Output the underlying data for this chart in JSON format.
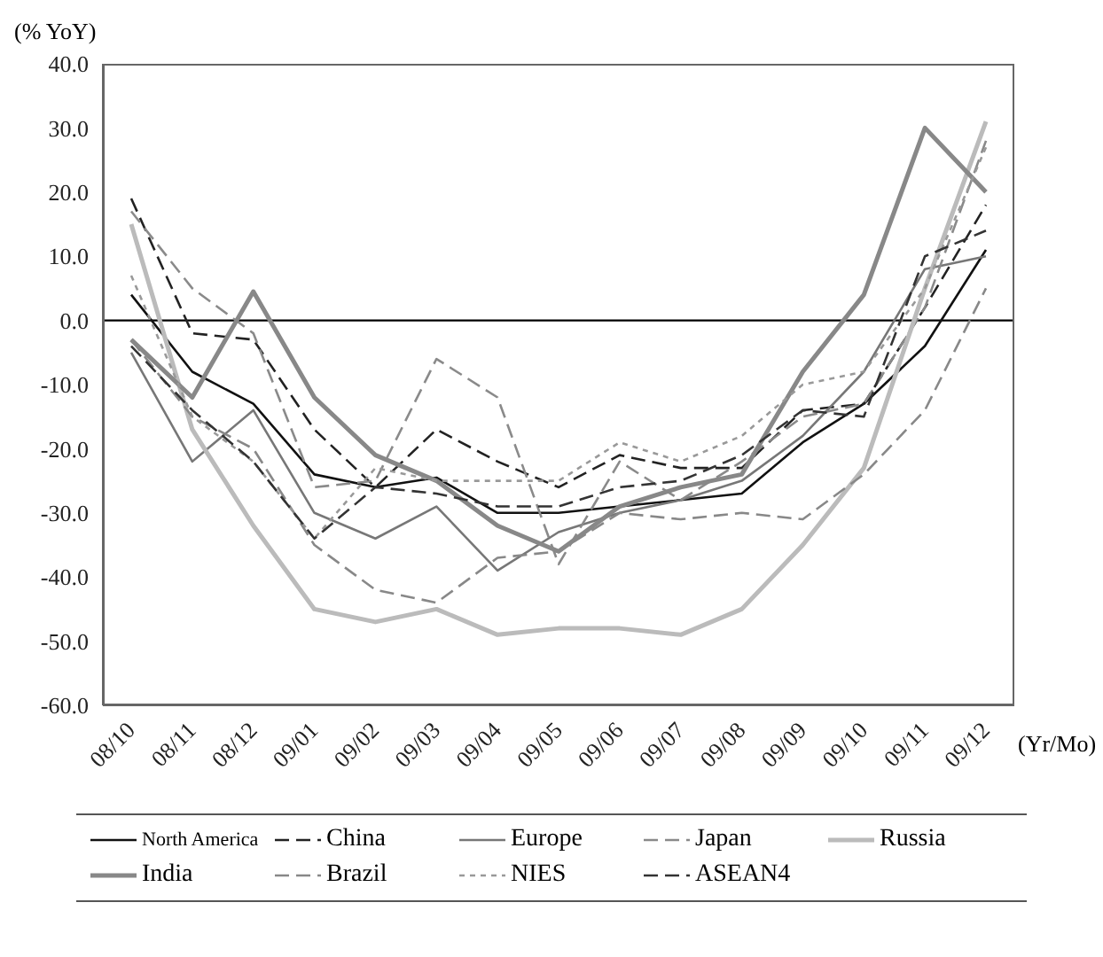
{
  "chart_data": {
    "type": "line",
    "ylabel": "(% YoY)",
    "xlabel": "(Yr/Mo)",
    "categories": [
      "08/10",
      "08/11",
      "08/12",
      "09/01",
      "09/02",
      "09/03",
      "09/04",
      "09/05",
      "09/06",
      "09/07",
      "09/08",
      "09/09",
      "09/10",
      "09/11",
      "09/12"
    ],
    "series": [
      {
        "name": "North America",
        "color": "#111111",
        "line_style": "solid",
        "values": [
          4,
          -8,
          -13,
          -24,
          -26,
          -24.5,
          -30,
          -30,
          -29,
          -28,
          -27,
          -19,
          -13,
          -4,
          11
        ]
      },
      {
        "name": "China",
        "color": "#222222",
        "line_style": "dashed",
        "values": [
          19,
          -2,
          -3,
          -17,
          -26,
          -17,
          -22,
          -26,
          -21,
          -23,
          -23,
          -14,
          -13,
          2,
          18
        ]
      },
      {
        "name": "Europe",
        "color": "#777777",
        "line_style": "solid",
        "values": [
          -5,
          -22,
          -14,
          -30,
          -34,
          -29,
          -39,
          -33,
          -30,
          -28,
          -25,
          -18,
          -8,
          8,
          10
        ]
      },
      {
        "name": "Japan",
        "color": "#8a8a8a",
        "line_style": "dashed",
        "values": [
          17,
          5,
          -2,
          -26,
          -25,
          -6,
          -12,
          -38,
          -22,
          -28,
          -22,
          -15,
          -13,
          2,
          28
        ]
      },
      {
        "name": "Russia",
        "color": "#bbbbbb",
        "line_style": "solid",
        "values": [
          15,
          -17,
          -32,
          -45,
          -47,
          -45,
          -49,
          -48,
          -48,
          -49,
          -45,
          -35,
          -23,
          5,
          31
        ]
      },
      {
        "name": "India",
        "color": "#888888",
        "line_style": "solid",
        "values": [
          -3,
          -12,
          4.5,
          -12,
          -21,
          -25,
          -32,
          -36,
          -29,
          -26,
          -24,
          -8,
          4,
          30,
          20
        ]
      },
      {
        "name": "Brazil",
        "color": "#888888",
        "line_style": "dashed",
        "values": [
          -3,
          -15,
          -20,
          -35,
          -42,
          -44,
          -37,
          -36,
          -30,
          -31,
          -30,
          -31,
          -24,
          -14,
          5
        ]
      },
      {
        "name": "NIES",
        "color": "#999999",
        "line_style": "dotted",
        "values": [
          7,
          -15,
          -22,
          -34,
          -23,
          -25,
          -25,
          -25,
          -19,
          -22,
          -18,
          -10,
          -8,
          5,
          27
        ]
      },
      {
        "name": "ASEAN4",
        "color": "#333333",
        "line_style": "dashed",
        "values": [
          -4,
          -14,
          -22,
          -34,
          -26,
          -27,
          -29,
          -29,
          -26,
          -25,
          -21,
          -14,
          -15,
          10,
          14
        ]
      }
    ],
    "ylim": [
      -60,
      40
    ],
    "yticks": [
      {
        "value": -60,
        "label": "-60.0"
      },
      {
        "value": -50,
        "label": "-50.0"
      },
      {
        "value": -40,
        "label": "-40.0"
      },
      {
        "value": -30,
        "label": "-30.0"
      },
      {
        "value": -20,
        "label": "-20.0"
      },
      {
        "value": -10,
        "label": "-10.0"
      },
      {
        "value": 0,
        "label": "0.0"
      },
      {
        "value": 10,
        "label": "10.0"
      },
      {
        "value": 20,
        "label": "20.0"
      },
      {
        "value": 30,
        "label": "30.0"
      },
      {
        "value": 40,
        "label": "40.0"
      }
    ],
    "ref_lines": [
      {
        "axis": "y",
        "value": 0,
        "color": "#000000"
      }
    ],
    "grid": false,
    "legend": "bottom",
    "marker": "none"
  }
}
